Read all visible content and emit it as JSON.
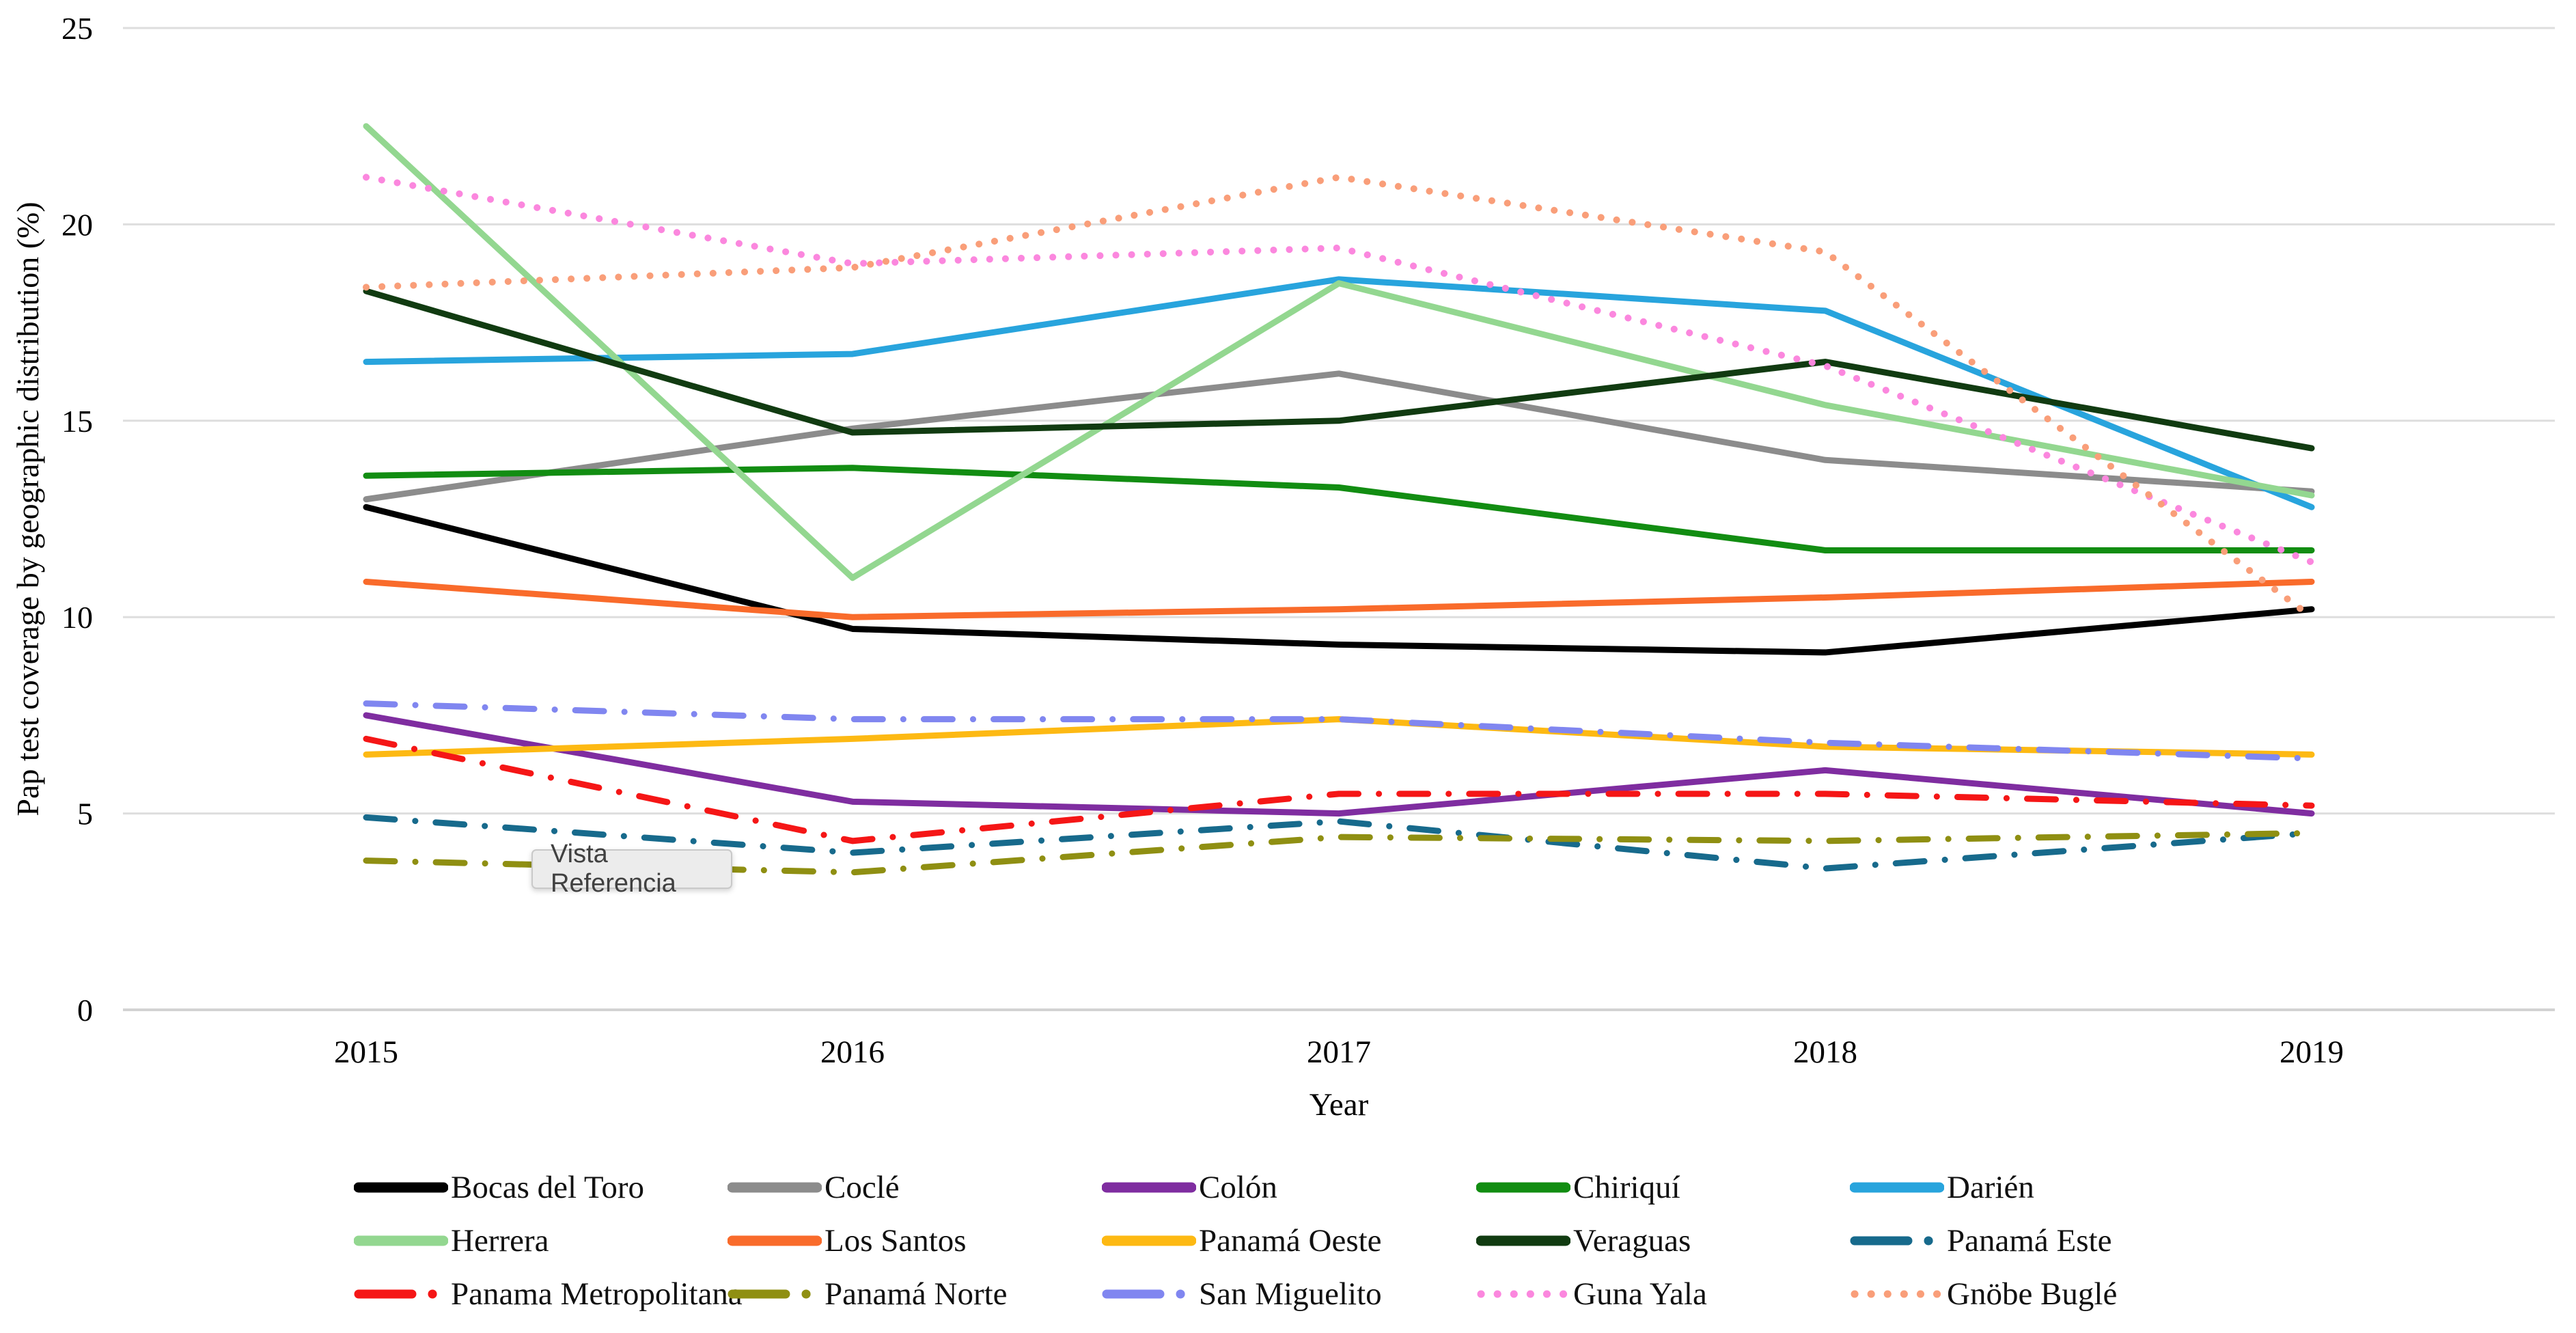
{
  "tooltip": {
    "text": "Vista Referencia"
  },
  "axis": {
    "y_title": "Pap test coverage by geographic distribution (%)",
    "x_title": "Year"
  },
  "colors": {
    "grid": "#dedede",
    "zero_line": "#d2d2d2",
    "text": "#000000",
    "tooltip_bg": "#ececec"
  },
  "chart_data": {
    "type": "line",
    "title": "",
    "xlabel": "Year",
    "ylabel": "Pap test coverage by geographic distribution (%)",
    "x": [
      2015,
      2016,
      2017,
      2018,
      2019
    ],
    "ylim": [
      0,
      25
    ],
    "yticks": [
      0,
      5,
      10,
      15,
      20,
      25
    ],
    "grid": true,
    "legend_position": "bottom",
    "legend_columns": 5,
    "series": [
      {
        "name": "Bocas del Toro",
        "color": "#000000",
        "style": "solid",
        "values": [
          12.8,
          9.7,
          9.3,
          9.1,
          10.2
        ]
      },
      {
        "name": "Coclé",
        "color": "#8c8c8c",
        "style": "solid",
        "values": [
          13.0,
          14.8,
          16.2,
          14.0,
          13.2
        ]
      },
      {
        "name": "Colón",
        "color": "#7f2da0",
        "style": "solid",
        "values": [
          7.5,
          5.3,
          5.0,
          6.1,
          5.0
        ]
      },
      {
        "name": "Chiriquí",
        "color": "#128d12",
        "style": "solid",
        "values": [
          13.6,
          13.8,
          13.3,
          11.7,
          11.7
        ]
      },
      {
        "name": "Darién",
        "color": "#28a4dd",
        "style": "solid",
        "values": [
          16.5,
          16.7,
          18.6,
          17.8,
          12.8
        ]
      },
      {
        "name": "Herrera",
        "color": "#93d790",
        "style": "solid",
        "values": [
          22.5,
          11.0,
          18.5,
          15.4,
          13.1
        ]
      },
      {
        "name": "Los Santos",
        "color": "#f96b2b",
        "style": "solid",
        "values": [
          10.9,
          10.0,
          10.2,
          10.5,
          10.9
        ]
      },
      {
        "name": "Panamá Oeste",
        "color": "#fdb913",
        "style": "solid",
        "values": [
          6.5,
          6.9,
          7.4,
          6.7,
          6.5
        ]
      },
      {
        "name": "Veraguas",
        "color": "#113b11",
        "style": "solid",
        "values": [
          18.3,
          14.7,
          15.0,
          16.5,
          14.3
        ]
      },
      {
        "name": "Panamá Este",
        "color": "#176a8c",
        "style": "dashdot",
        "values": [
          4.9,
          4.0,
          4.8,
          3.6,
          4.5
        ]
      },
      {
        "name": "Panama Metropolitana",
        "color": "#f51616",
        "style": "dashdot",
        "values": [
          6.9,
          4.3,
          5.5,
          5.5,
          5.2
        ]
      },
      {
        "name": "Panamá Norte",
        "color": "#8f8f12",
        "style": "dashdot",
        "values": [
          3.8,
          3.5,
          4.4,
          4.3,
          4.5
        ]
      },
      {
        "name": "San Miguelito",
        "color": "#8086f0",
        "style": "dashdot",
        "values": [
          7.8,
          7.4,
          7.4,
          6.8,
          6.4
        ]
      },
      {
        "name": "Guna Yala",
        "color": "#fb87de",
        "style": "dotted",
        "values": [
          21.2,
          19.0,
          19.4,
          16.4,
          11.4
        ]
      },
      {
        "name": "Gnöbe Buglé",
        "color": "#f99e79",
        "style": "dotted",
        "values": [
          18.4,
          18.9,
          21.2,
          19.3,
          10.0
        ]
      }
    ]
  }
}
